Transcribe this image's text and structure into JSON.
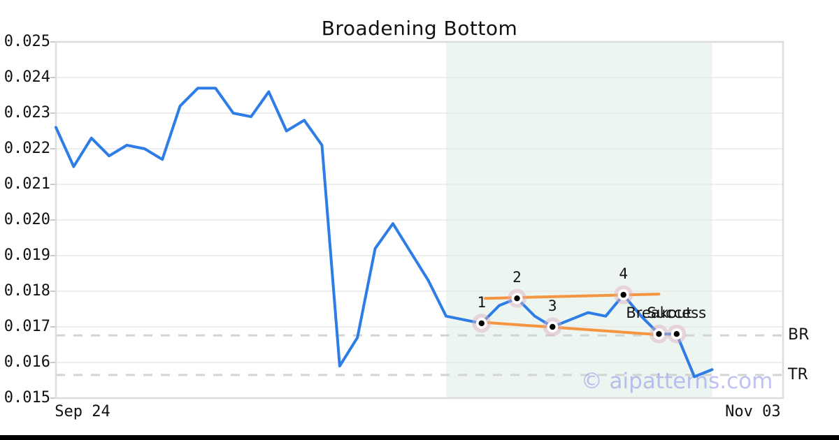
{
  "title": "Broadening Bottom",
  "watermark": "© aipatterns.com",
  "colors": {
    "price_line": "#2e7de6",
    "trendline": "#f6953f",
    "marker_halo": "rgba(222,175,190,0.45)",
    "marker_ring": "#ffffff",
    "marker_dot": "#000000",
    "shade": "#ecf5f0",
    "dashed_level": "#d4d4d4",
    "grid": "#e8e8e8",
    "spine": "#dcdcdc",
    "tick_mark": "#c9c9c9",
    "watermark": "#8b90e8",
    "footer_bar": "#000000"
  },
  "chart_data": {
    "type": "line",
    "title": "Broadening Bottom",
    "x_axis": {
      "index_range": [
        0,
        41
      ],
      "ticks": [
        {
          "label": "Sep 24",
          "index": 1.5
        },
        {
          "label": "Nov 03",
          "index": 39.3
        }
      ]
    },
    "y_axis": {
      "range": [
        0.015,
        0.025
      ],
      "ticks": [
        "0.025",
        "0.024",
        "0.023",
        "0.022",
        "0.021",
        "0.020",
        "0.019",
        "0.018",
        "0.017",
        "0.016",
        "0.015"
      ]
    },
    "grid": true,
    "series": [
      {
        "name": "price",
        "values": [
          0.0226,
          0.0215,
          0.0223,
          0.0218,
          0.0221,
          0.022,
          0.0217,
          0.0232,
          0.0237,
          0.0237,
          0.023,
          0.0229,
          0.0236,
          0.0225,
          0.0228,
          0.0221,
          0.0159,
          0.0167,
          0.0192,
          0.0199,
          0.0191,
          0.0183,
          0.0173,
          0.0172,
          0.0171,
          0.0176,
          0.0178,
          0.0173,
          0.017,
          0.0172,
          0.0174,
          0.0173,
          0.0179,
          0.0173,
          0.0168,
          0.0168,
          0.0156,
          0.0158
        ]
      }
    ],
    "pattern": {
      "shade_start_index": 22,
      "shade_end_index": 37,
      "points": [
        {
          "label": "1",
          "index": 24,
          "value": 0.0171,
          "role": "pattern-point"
        },
        {
          "label": "2",
          "index": 26,
          "value": 0.0178,
          "role": "pattern-point"
        },
        {
          "label": "3",
          "index": 28,
          "value": 0.017,
          "role": "pattern-point"
        },
        {
          "label": "4",
          "index": 32,
          "value": 0.0179,
          "role": "pattern-point"
        },
        {
          "label": "Breakout",
          "index": 34,
          "value": 0.0168,
          "role": "breakout"
        },
        {
          "label": "Success",
          "index": 35,
          "value": 0.0168,
          "role": "success"
        }
      ],
      "trendlines": [
        {
          "name": "upper-broadening-line",
          "x1_index": 24.2,
          "y1_value": 0.0178,
          "x2_index": 34,
          "y2_value": 0.01792
        },
        {
          "name": "lower-broadening-line",
          "x1_index": 24.0,
          "y1_value": 0.01713,
          "x2_index": 34,
          "y2_value": 0.01678
        }
      ],
      "levels": [
        {
          "label": "BR",
          "value": 0.01676
        },
        {
          "label": "TR",
          "value": 0.01565
        }
      ]
    }
  }
}
